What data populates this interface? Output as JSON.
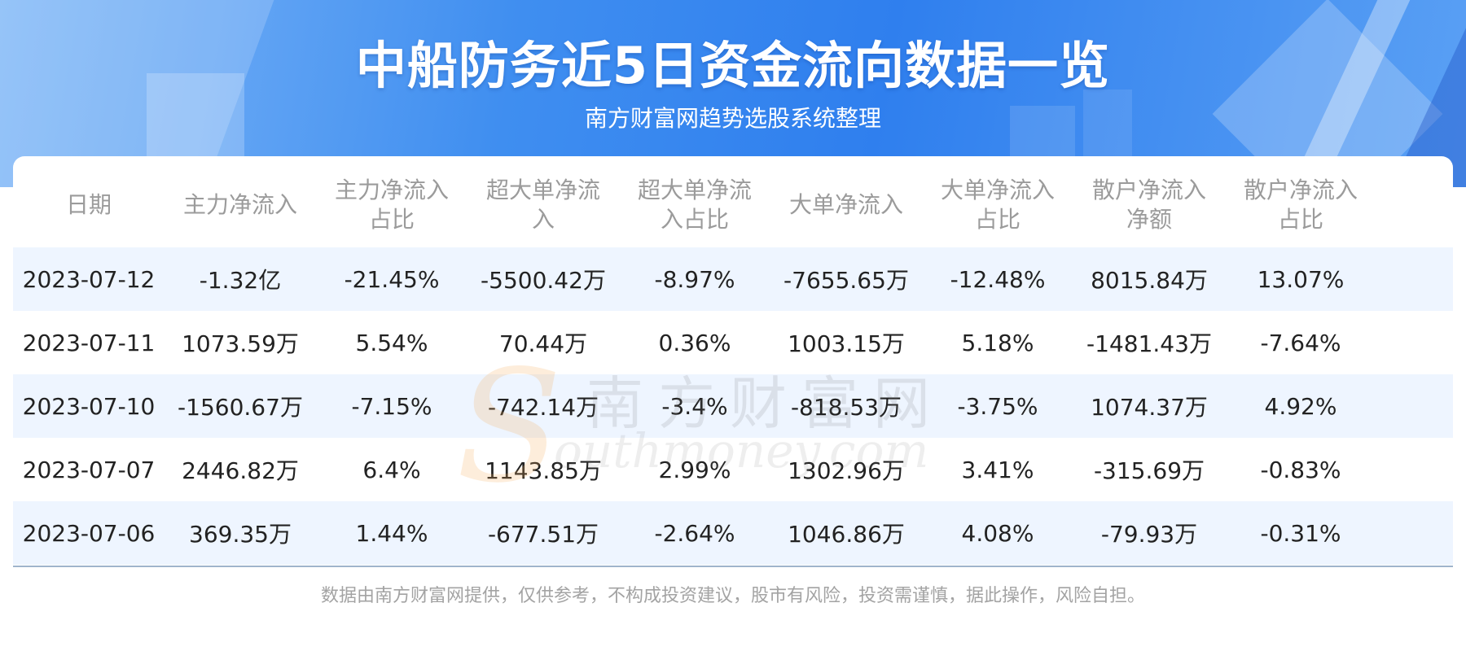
{
  "header": {
    "title": "中船防务近5日资金流向数据一览",
    "subtitle": "南方财富网趋势选股系统整理"
  },
  "table": {
    "columns": [
      "日期",
      "主力净流入",
      "主力净流入占比",
      "超大单净流入",
      "超大单净流入占比",
      "大单净流入",
      "大单净流入占比",
      "散户净流入净额",
      "散户净流入占比"
    ],
    "rows": [
      [
        "2023-07-12",
        "-1.32亿",
        "-21.45%",
        "-5500.42万",
        "-8.97%",
        "-7655.65万",
        "-12.48%",
        "8015.84万",
        "13.07%"
      ],
      [
        "2023-07-11",
        "1073.59万",
        "5.54%",
        "70.44万",
        "0.36%",
        "1003.15万",
        "5.18%",
        "-1481.43万",
        "-7.64%"
      ],
      [
        "2023-07-10",
        "-1560.67万",
        "-7.15%",
        "-742.14万",
        "-3.4%",
        "-818.53万",
        "-3.75%",
        "1074.37万",
        "4.92%"
      ],
      [
        "2023-07-07",
        "2446.82万",
        "6.4%",
        "1143.85万",
        "2.99%",
        "1302.96万",
        "3.41%",
        "-315.69万",
        "-0.83%"
      ],
      [
        "2023-07-06",
        "369.35万",
        "1.44%",
        "-677.51万",
        "-2.64%",
        "1046.86万",
        "4.08%",
        "-79.93万",
        "-0.31%"
      ]
    ]
  },
  "watermark": {
    "letter": "S",
    "cn": "南方财富网",
    "en": "outhmoney.com"
  },
  "footer": {
    "disclaimer": "数据由南方财富网提供，仅供参考，不构成投资建议，股市有风险，投资需谨慎，据此操作，风险自担。"
  },
  "colors": {
    "banner": "#3f8ef0",
    "row_alt": "#eef5ff",
    "header_text": "#9b9b9b",
    "cell_text": "#222222"
  }
}
